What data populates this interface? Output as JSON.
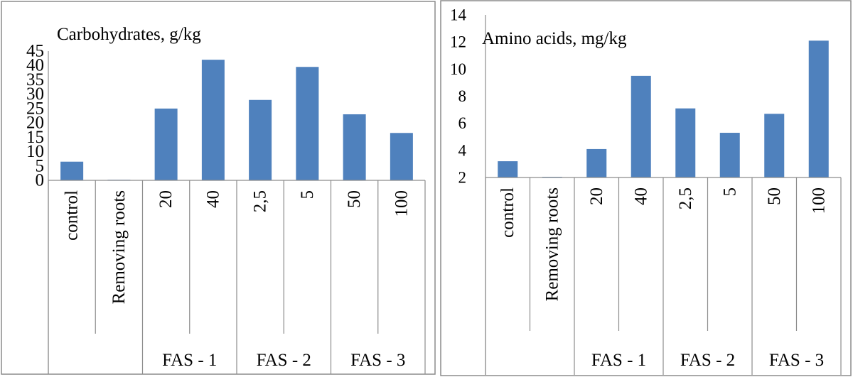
{
  "colors": {
    "bar": "#4f81bd",
    "axis": "#8c8c8c",
    "text": "#000000"
  },
  "chart_data": [
    {
      "type": "bar",
      "title": "Carbohydrates, g/kg",
      "categories": [
        "control",
        "Removing roots",
        "20",
        "40",
        "2,5",
        "5",
        "50",
        "100"
      ],
      "groups": [
        {
          "label": "FAS - 1",
          "from": 2,
          "to": 3
        },
        {
          "label": "FAS - 2",
          "from": 4,
          "to": 5
        },
        {
          "label": "FAS - 3",
          "from": 6,
          "to": 7
        }
      ],
      "values": [
        6.5,
        0,
        25,
        42,
        28,
        39.5,
        23,
        16.5
      ],
      "ylim": [
        0,
        45
      ],
      "yticks": [
        "0",
        "5",
        "10",
        "15",
        "20",
        "25",
        "30",
        "35",
        "40",
        "45"
      ],
      "grid": false,
      "legend": "none"
    },
    {
      "type": "bar",
      "title": "Amino acids, mg/kg",
      "categories": [
        "control",
        "Removing roots",
        "20",
        "40",
        "2,5",
        "5",
        "50",
        "100"
      ],
      "groups": [
        {
          "label": "FAS - 1",
          "from": 2,
          "to": 3
        },
        {
          "label": "FAS - 2",
          "from": 4,
          "to": 5
        },
        {
          "label": "FAS - 3",
          "from": 6,
          "to": 7
        }
      ],
      "values": [
        3.2,
        2.05,
        4.1,
        9.5,
        7.1,
        5.3,
        6.7,
        12.1
      ],
      "ylim": [
        2,
        14
      ],
      "yticks": [
        "2",
        "4",
        "6",
        "8",
        "10",
        "12",
        "14"
      ],
      "grid": false,
      "legend": "none"
    }
  ]
}
